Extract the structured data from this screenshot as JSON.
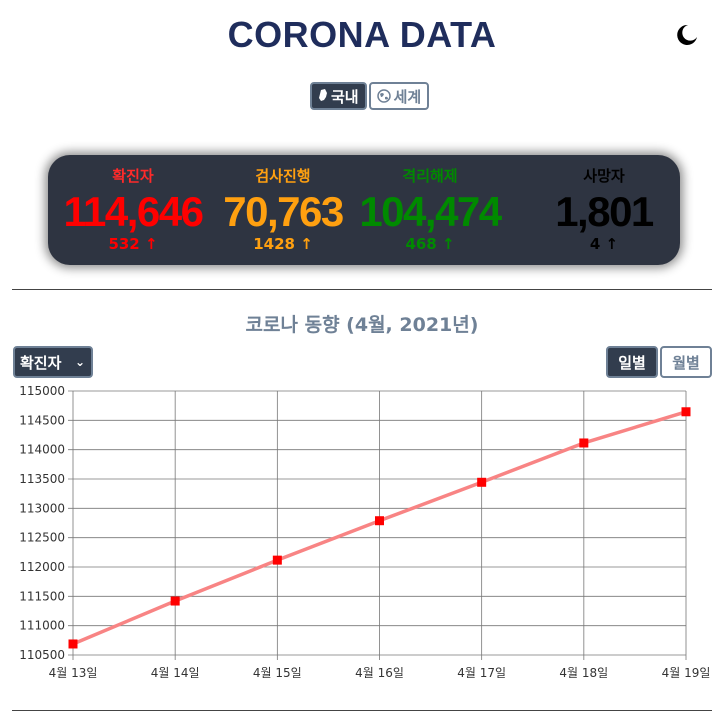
{
  "header": {
    "title": "CORONA DATA"
  },
  "region_toggle": {
    "domestic_label": "국내",
    "global_label": "세계"
  },
  "stats": [
    {
      "label": "확진자",
      "value": "114,646",
      "delta": "532",
      "color": "#ff0000",
      "label_color": "#ff2a2a"
    },
    {
      "label": "검사진행",
      "value": "70,763",
      "delta": "1428",
      "color": "#ffa010",
      "label_color": "#ffa010"
    },
    {
      "label": "격리해제",
      "value": "104,474",
      "delta": "468",
      "color": "#008a00",
      "label_color": "#008a00"
    },
    {
      "label": "사망자",
      "value": "1,801",
      "delta": "4",
      "color": "#000000",
      "label_color": "#000000"
    }
  ],
  "trend": {
    "title": "코로나 동향 (4월, 2021년)",
    "metric_select": {
      "selected": "확진자"
    },
    "period_buttons": {
      "daily": "일별",
      "monthly": "월별"
    }
  },
  "chart_data": {
    "type": "line",
    "x": [
      "4월 13일",
      "4월 14일",
      "4월 15일",
      "4월 16일",
      "4월 17일",
      "4월 18일",
      "4월 19일"
    ],
    "series": [
      {
        "name": "확진자",
        "values": [
          110688,
          111420,
          112117,
          112789,
          113444,
          114114,
          114646
        ]
      }
    ],
    "ylim": [
      110500,
      115000
    ],
    "yticks": [
      110500,
      111000,
      111500,
      112000,
      112500,
      113000,
      113500,
      114000,
      114500,
      115000
    ],
    "grid": true,
    "line_color": "#f88484",
    "marker_color": "#ff0000"
  }
}
